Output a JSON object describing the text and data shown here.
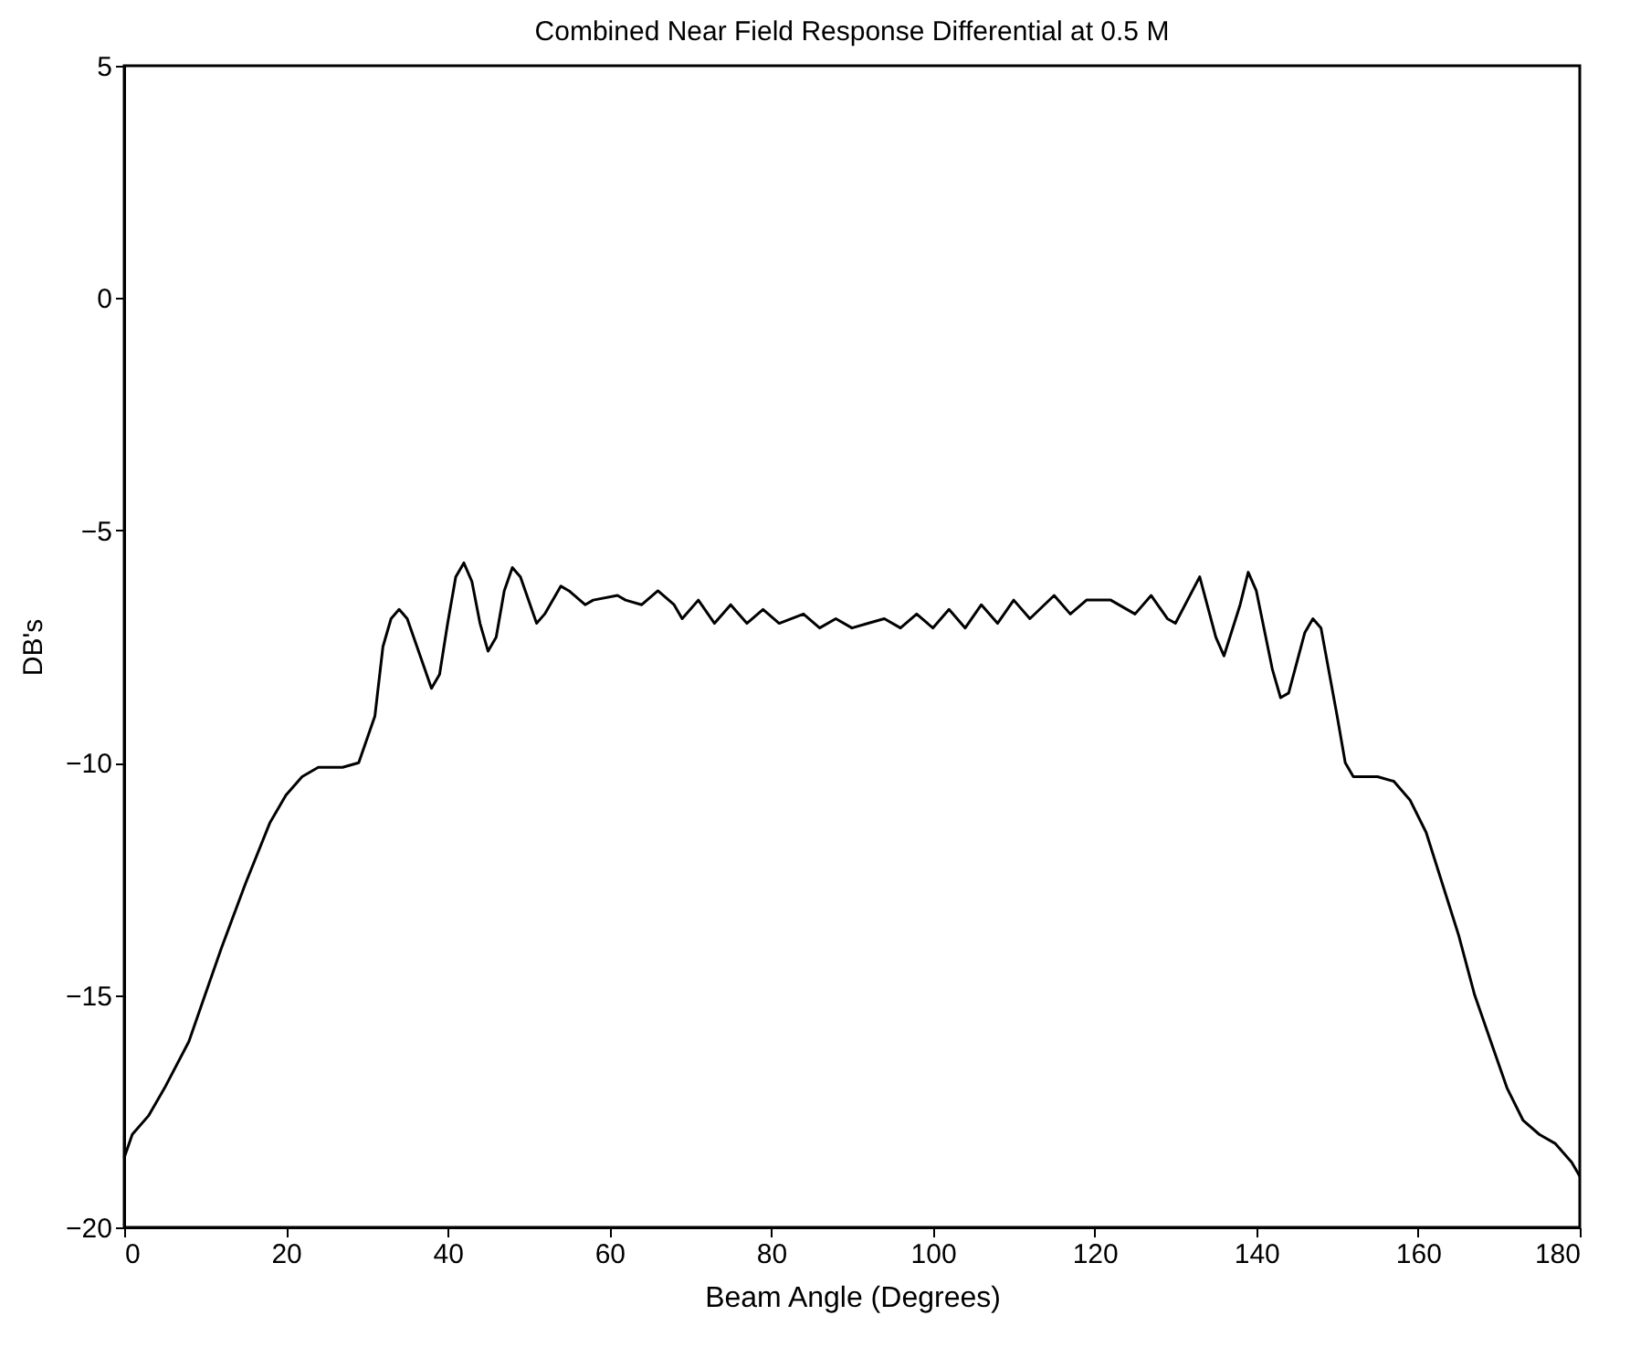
{
  "chart_data": {
    "type": "line",
    "title": "Combined Near Field Response Differential at 0.5 M",
    "xlabel": "Beam Angle (Degrees)",
    "ylabel": "DB's",
    "x": [
      0,
      1,
      3,
      5,
      8,
      10,
      12,
      15,
      18,
      20,
      22,
      24,
      27,
      29,
      31,
      32,
      33,
      34,
      35,
      37,
      38,
      39,
      40,
      41,
      42,
      43,
      44,
      45,
      46,
      47,
      48,
      49,
      51,
      52,
      54,
      55,
      57,
      58,
      61,
      62,
      64,
      66,
      68,
      69,
      71,
      73,
      75,
      77,
      79,
      81,
      84,
      86,
      88,
      90,
      92,
      94,
      96,
      98,
      100,
      102,
      104,
      106,
      108,
      110,
      112,
      115,
      117,
      119,
      122,
      125,
      127,
      129,
      130,
      133,
      135,
      136,
      138,
      139,
      140,
      142,
      143,
      144,
      146,
      147,
      148,
      150,
      151,
      152,
      155,
      157,
      159,
      161,
      163,
      165,
      167,
      169,
      171,
      173,
      175,
      177,
      179,
      180
    ],
    "series": [
      {
        "color": "#000000",
        "values": [
          -18.5,
          -18.0,
          -17.6,
          -17.0,
          -16.0,
          -15.0,
          -14.0,
          -12.6,
          -11.3,
          -10.7,
          -10.3,
          -10.1,
          -10.1,
          -10.0,
          -9.0,
          -7.5,
          -6.9,
          -6.7,
          -6.9,
          -7.9,
          -8.4,
          -8.1,
          -7.0,
          -6.0,
          -5.7,
          -6.1,
          -7.0,
          -7.6,
          -7.3,
          -6.3,
          -5.8,
          -6.0,
          -7.0,
          -6.8,
          -6.2,
          -6.3,
          -6.6,
          -6.5,
          -6.4,
          -6.5,
          -6.6,
          -6.3,
          -6.6,
          -6.9,
          -6.5,
          -7.0,
          -6.6,
          -7.0,
          -6.7,
          -7.0,
          -6.8,
          -7.1,
          -6.9,
          -7.1,
          -7.0,
          -6.9,
          -7.1,
          -6.8,
          -7.1,
          -6.7,
          -7.1,
          -6.6,
          -7.0,
          -6.5,
          -6.9,
          -6.4,
          -6.8,
          -6.5,
          -6.5,
          -6.8,
          -6.4,
          -6.9,
          -7.0,
          -6.0,
          -7.3,
          -7.7,
          -6.6,
          -5.9,
          -6.3,
          -8.0,
          -8.6,
          -8.5,
          -7.2,
          -6.9,
          -7.1,
          -9.0,
          -10.0,
          -10.3,
          -10.3,
          -10.4,
          -10.8,
          -11.5,
          -12.6,
          -13.7,
          -15.0,
          -16.0,
          -17.0,
          -17.7,
          -18.0,
          -18.2,
          -18.6,
          -18.9
        ]
      }
    ],
    "xlim": [
      0,
      180
    ],
    "xticks": [
      0,
      20,
      40,
      60,
      80,
      100,
      120,
      140,
      160,
      180
    ],
    "ylim": [
      -20,
      5
    ],
    "yticks": [
      -20,
      -15,
      -10,
      -5,
      0,
      5
    ],
    "grid": false
  }
}
